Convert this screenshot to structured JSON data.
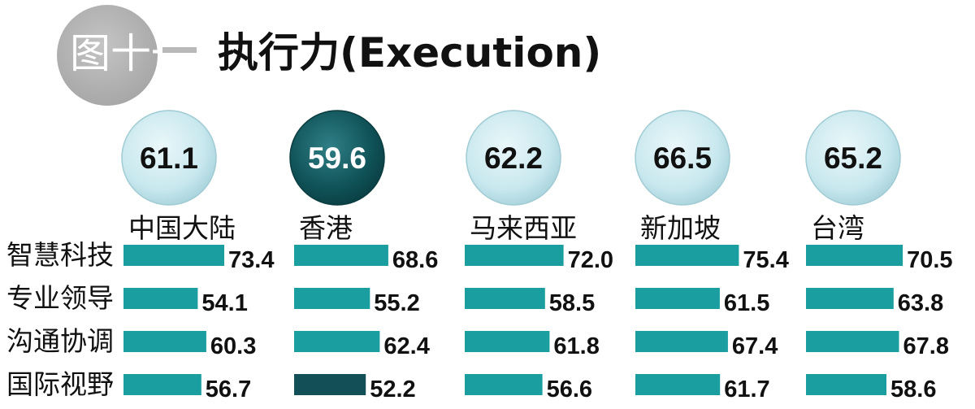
{
  "figure_label": "图十一",
  "title": "执行力(Execution)",
  "colors": {
    "bar": "#1a9e9f",
    "bar_highlight": "#124f57",
    "bubble_light": "#c8e8ee",
    "bubble_highlight": "#0f5257",
    "badge": "#aaaaaa"
  },
  "chart_data": {
    "type": "bar",
    "orientation": "horizontal",
    "title": "执行力(Execution)",
    "categories": [
      "智慧科技",
      "专业领导",
      "沟通协调",
      "国际视野"
    ],
    "series": [
      {
        "name": "中国大陆",
        "overall": "61.1",
        "values": [
          73.4,
          54.1,
          60.3,
          56.7
        ]
      },
      {
        "name": "香港",
        "overall": "59.6",
        "values": [
          68.6,
          55.2,
          62.4,
          52.2
        ]
      },
      {
        "name": "马来西亚",
        "overall": "62.2",
        "values": [
          72.0,
          58.5,
          61.8,
          56.6
        ]
      },
      {
        "name": "新加坡",
        "overall": "66.5",
        "values": [
          75.4,
          61.5,
          67.4,
          61.7
        ]
      },
      {
        "name": "台湾",
        "overall": "65.2",
        "values": [
          70.5,
          63.8,
          67.8,
          58.6
        ]
      }
    ],
    "highlight": {
      "series": 1,
      "overall": true,
      "bar_index": 3
    },
    "grid": false,
    "legend": "none"
  }
}
